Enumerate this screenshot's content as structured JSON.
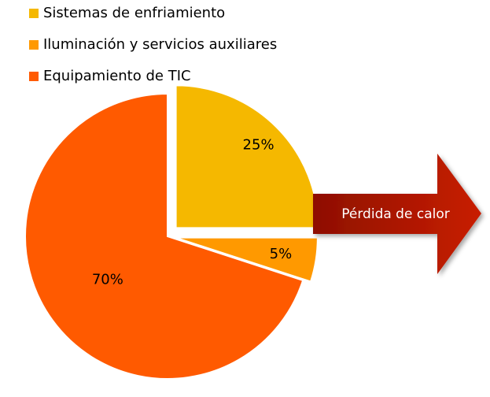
{
  "chart_data": {
    "type": "pie",
    "categories": [
      "Sistemas de enfriamiento",
      "Iluminación y servicios auxiliares",
      "Equipamiento de TIC"
    ],
    "values": [
      25,
      5,
      70
    ],
    "value_labels": [
      "25%",
      "5%",
      "70%"
    ],
    "colors": [
      "#f5b800",
      "#ff9900",
      "#ff5a00"
    ],
    "legend": "top-left",
    "annotation": "Pérdida de calor"
  }
}
